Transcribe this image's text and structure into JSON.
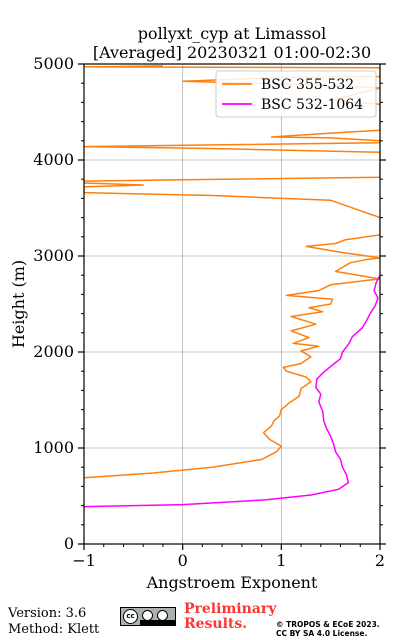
{
  "chart_data": {
    "type": "line",
    "title": "pollyxt_cyp at Limassol",
    "subtitle": "[Averaged] 20230321 01:00-02:30",
    "xlabel": "Angstroem Exponent",
    "ylabel": "Height (m)",
    "xlim": [
      -1,
      2
    ],
    "ylim": [
      0,
      5000
    ],
    "x_ticks": [
      -1,
      0,
      1,
      2
    ],
    "y_ticks": [
      0,
      1000,
      2000,
      3000,
      4000,
      5000
    ],
    "x_tick_labels": [
      "−1",
      "0",
      "1",
      "2"
    ],
    "y_tick_labels": [
      "0",
      "1000",
      "2000",
      "3000",
      "4000",
      "5000"
    ],
    "grid": true,
    "legend_position": "top-right",
    "series": [
      {
        "name": "BSC 355-532",
        "color": "#ff7f0e",
        "points": [
          [
            -1.0,
            690
          ],
          [
            -0.3,
            740
          ],
          [
            0.3,
            800
          ],
          [
            0.8,
            880
          ],
          [
            0.95,
            960
          ],
          [
            1.0,
            1020
          ],
          [
            0.88,
            1090
          ],
          [
            0.82,
            1160
          ],
          [
            0.9,
            1230
          ],
          [
            0.93,
            1290
          ],
          [
            0.98,
            1330
          ],
          [
            1.0,
            1400
          ],
          [
            1.08,
            1470
          ],
          [
            1.18,
            1540
          ],
          [
            1.2,
            1620
          ],
          [
            1.3,
            1690
          ],
          [
            1.25,
            1740
          ],
          [
            1.05,
            1800
          ],
          [
            1.02,
            1840
          ],
          [
            1.2,
            1880
          ],
          [
            1.3,
            1950
          ],
          [
            1.2,
            2010
          ],
          [
            1.38,
            2060
          ],
          [
            1.12,
            2090
          ],
          [
            1.28,
            2150
          ],
          [
            1.1,
            2220
          ],
          [
            1.35,
            2290
          ],
          [
            1.1,
            2370
          ],
          [
            1.42,
            2420
          ],
          [
            1.28,
            2460
          ],
          [
            1.5,
            2500
          ],
          [
            1.52,
            2550
          ],
          [
            1.05,
            2590
          ],
          [
            1.38,
            2640
          ],
          [
            1.5,
            2700
          ],
          [
            1.9,
            2750
          ],
          [
            2.0,
            2760
          ],
          [
            1.55,
            2840
          ],
          [
            1.7,
            2930
          ],
          [
            1.85,
            2960
          ],
          [
            2.0,
            2980
          ],
          [
            1.6,
            3040
          ],
          [
            1.25,
            3100
          ],
          [
            1.55,
            3130
          ],
          [
            1.65,
            3170
          ],
          [
            2.0,
            3220
          ],
          [
            2.0,
            3400
          ],
          [
            1.5,
            3580
          ],
          [
            0.3,
            3630
          ],
          [
            -1.0,
            3660
          ],
          [
            -1.0,
            3720
          ],
          [
            -0.4,
            3740
          ],
          [
            -1.0,
            3760
          ],
          [
            -1.0,
            3780
          ],
          [
            2.0,
            3820
          ],
          [
            2.0,
            4080
          ],
          [
            0.3,
            4120
          ],
          [
            -1.0,
            4140
          ],
          [
            2.0,
            4180
          ],
          [
            2.0,
            4200
          ],
          [
            1.5,
            4230
          ],
          [
            0.9,
            4240
          ],
          [
            1.5,
            4280
          ],
          [
            2.0,
            4310
          ],
          [
            2.0,
            4580
          ],
          [
            1.5,
            4620
          ],
          [
            2.0,
            4750
          ],
          [
            1.4,
            4780
          ],
          [
            0.0,
            4820
          ],
          [
            1.0,
            4860
          ],
          [
            2.0,
            4870
          ],
          [
            2.0,
            4960
          ],
          [
            -1.0,
            4970
          ],
          [
            -0.2,
            4980
          ]
        ]
      },
      {
        "name": "BSC 532-1064",
        "color": "#ff00ff",
        "points": [
          [
            -1.0,
            390
          ],
          [
            0.0,
            410
          ],
          [
            0.85,
            460
          ],
          [
            1.3,
            510
          ],
          [
            1.58,
            570
          ],
          [
            1.68,
            640
          ],
          [
            1.66,
            720
          ],
          [
            1.62,
            800
          ],
          [
            1.6,
            880
          ],
          [
            1.55,
            960
          ],
          [
            1.53,
            1040
          ],
          [
            1.5,
            1120
          ],
          [
            1.46,
            1200
          ],
          [
            1.43,
            1280
          ],
          [
            1.42,
            1380
          ],
          [
            1.38,
            1480
          ],
          [
            1.4,
            1560
          ],
          [
            1.35,
            1630
          ],
          [
            1.36,
            1720
          ],
          [
            1.43,
            1790
          ],
          [
            1.5,
            1850
          ],
          [
            1.6,
            1930
          ],
          [
            1.62,
            2000
          ],
          [
            1.68,
            2080
          ],
          [
            1.72,
            2160
          ],
          [
            1.82,
            2250
          ],
          [
            1.86,
            2320
          ],
          [
            1.9,
            2400
          ],
          [
            1.95,
            2480
          ],
          [
            1.98,
            2560
          ],
          [
            1.94,
            2640
          ],
          [
            1.96,
            2720
          ],
          [
            2.0,
            2800
          ]
        ]
      }
    ]
  },
  "footer": {
    "version": "Version: 3.6",
    "method": "Method: Klett",
    "preliminary_line1": "Preliminary",
    "preliminary_line2": "Results.",
    "license_line1": "© TROPOS & ECoE 2023.",
    "license_line2": "CC BY SA 4.0 License."
  },
  "badge_text": "cc"
}
